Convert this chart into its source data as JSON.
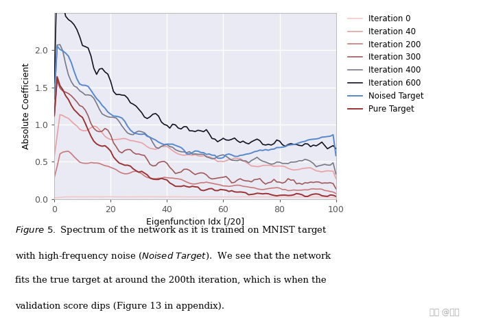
{
  "xlabel": "Eigenfunction Idx [/20]",
  "ylabel": "Absolute Coefficient",
  "xlim": [
    0,
    100
  ],
  "ylim": [
    0.0,
    2.5
  ],
  "yticks": [
    0.0,
    0.5,
    1.0,
    1.5,
    2.0
  ],
  "xticks": [
    0,
    20,
    40,
    60,
    80,
    100
  ],
  "bg_color": "#eaeaf4",
  "grid_color": "white",
  "legend_entries": [
    "Iteration 0",
    "Iteration 40",
    "Iteration 200",
    "Iteration 300",
    "Iteration 400",
    "Iteration 600",
    "Noised Target",
    "Pure Target"
  ],
  "line_colors": {
    "iter0": "#f5c8c8",
    "iter40": "#e8a0a0",
    "iter200": "#c87878",
    "iter300": "#a05858",
    "iter400": "#777788",
    "iter600": "#111122",
    "noised": "#5588cc",
    "pure": "#993333"
  },
  "watermark": "知乎 @若羽"
}
